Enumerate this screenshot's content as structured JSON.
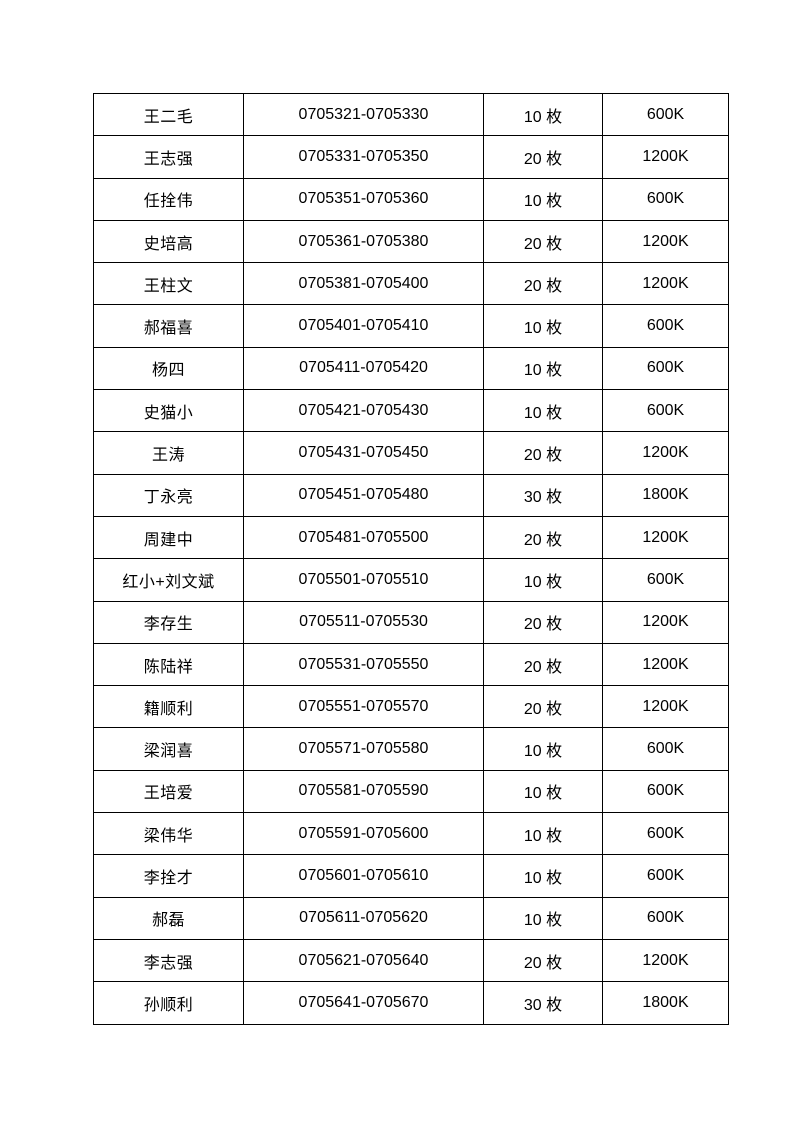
{
  "document": {
    "background_color": "#ffffff",
    "text_color": "#000000",
    "table_border_color": "#000000"
  },
  "table": {
    "columns": [
      "name",
      "serial_range",
      "count",
      "amount"
    ],
    "rows": [
      {
        "name": "王二毛",
        "serial_range": "0705321-0705330",
        "count": "10 枚",
        "amount": "600K"
      },
      {
        "name": "王志强",
        "serial_range": "0705331-0705350",
        "count": "20 枚",
        "amount": "1200K"
      },
      {
        "name": "任拴伟",
        "serial_range": "0705351-0705360",
        "count": "10 枚",
        "amount": "600K"
      },
      {
        "name": "史培高",
        "serial_range": "0705361-0705380",
        "count": "20 枚",
        "amount": "1200K"
      },
      {
        "name": "王柱文",
        "serial_range": "0705381-0705400",
        "count": "20 枚",
        "amount": "1200K"
      },
      {
        "name": "郝福喜",
        "serial_range": "0705401-0705410",
        "count": "10 枚",
        "amount": "600K"
      },
      {
        "name": "杨四",
        "serial_range": "0705411-0705420",
        "count": "10 枚",
        "amount": "600K"
      },
      {
        "name": "史猫小",
        "serial_range": "0705421-0705430",
        "count": "10 枚",
        "amount": "600K"
      },
      {
        "name": "王涛",
        "serial_range": "0705431-0705450",
        "count": "20 枚",
        "amount": "1200K"
      },
      {
        "name": "丁永亮",
        "serial_range": "0705451-0705480",
        "count": "30 枚",
        "amount": "1800K"
      },
      {
        "name": "周建中",
        "serial_range": "0705481-0705500",
        "count": "20 枚",
        "amount": "1200K"
      },
      {
        "name": "红小+刘文斌",
        "serial_range": "0705501-0705510",
        "count": "10 枚",
        "amount": "600K"
      },
      {
        "name": "李存生",
        "serial_range": "0705511-0705530",
        "count": "20 枚",
        "amount": "1200K"
      },
      {
        "name": "陈陆祥",
        "serial_range": "0705531-0705550",
        "count": "20 枚",
        "amount": "1200K"
      },
      {
        "name": "籍顺利",
        "serial_range": "0705551-0705570",
        "count": "20 枚",
        "amount": "1200K"
      },
      {
        "name": "梁润喜",
        "serial_range": "0705571-0705580",
        "count": "10 枚",
        "amount": "600K"
      },
      {
        "name": "王培爱",
        "serial_range": "0705581-0705590",
        "count": "10 枚",
        "amount": "600K"
      },
      {
        "name": "梁伟华",
        "serial_range": "0705591-0705600",
        "count": "10 枚",
        "amount": "600K"
      },
      {
        "name": "李拴才",
        "serial_range": "0705601-0705610",
        "count": "10 枚",
        "amount": "600K"
      },
      {
        "name": "郝磊",
        "serial_range": "0705611-0705620",
        "count": "10 枚",
        "amount": "600K"
      },
      {
        "name": "李志强",
        "serial_range": "0705621-0705640",
        "count": "20 枚",
        "amount": "1200K"
      },
      {
        "name": "孙顺利",
        "serial_range": "0705641-0705670",
        "count": "30 枚",
        "amount": "1800K"
      }
    ]
  }
}
